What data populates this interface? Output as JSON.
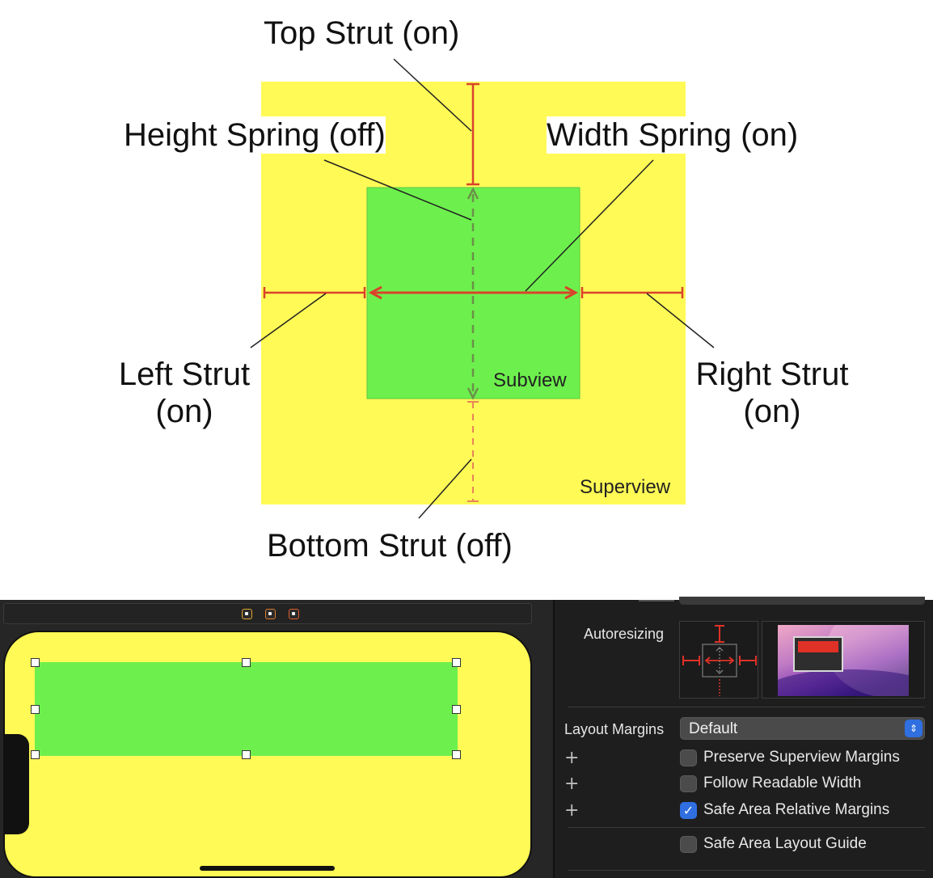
{
  "diagram": {
    "labels": {
      "top_strut": "Top Strut (on)",
      "height_spring": "Height Spring (off)",
      "width_spring": "Width Spring (on)",
      "left_strut_line1": "Left Strut",
      "left_strut_line2": "(on)",
      "right_strut_line1": "Right Strut",
      "right_strut_line2": "(on)",
      "bottom_strut": "Bottom Strut (off)",
      "subview": "Subview",
      "superview": "Superview"
    },
    "colors": {
      "superview": "#fffa55",
      "subview": "#6df04d",
      "strut": "#d9432c",
      "spring_off": "#6c8f4a"
    }
  },
  "xcode": {
    "toolbar_icons": [
      "view-controller-icon",
      "first-responder-icon",
      "exit-icon"
    ],
    "inspector": {
      "autoresizing_label": "Autoresizing",
      "layout_margins_label": "Layout Margins",
      "layout_margins_value": "Default",
      "checkboxes": [
        {
          "label": "Preserve Superview Margins",
          "checked": false,
          "has_plus": true
        },
        {
          "label": "Follow Readable Width",
          "checked": false,
          "has_plus": true
        },
        {
          "label": "Safe Area Relative Margins",
          "checked": true,
          "has_plus": true
        },
        {
          "label": "Safe Area Layout Guide",
          "checked": false,
          "has_plus": false
        }
      ],
      "plus_symbol": "+",
      "check_symbol": "✓",
      "select_chevron": "⌃⌄"
    },
    "colors": {
      "canvas_view": "#fffa55",
      "subview": "#6df04d",
      "accent": "#2f6fe0",
      "autoresize_red": "#e03127"
    }
  }
}
